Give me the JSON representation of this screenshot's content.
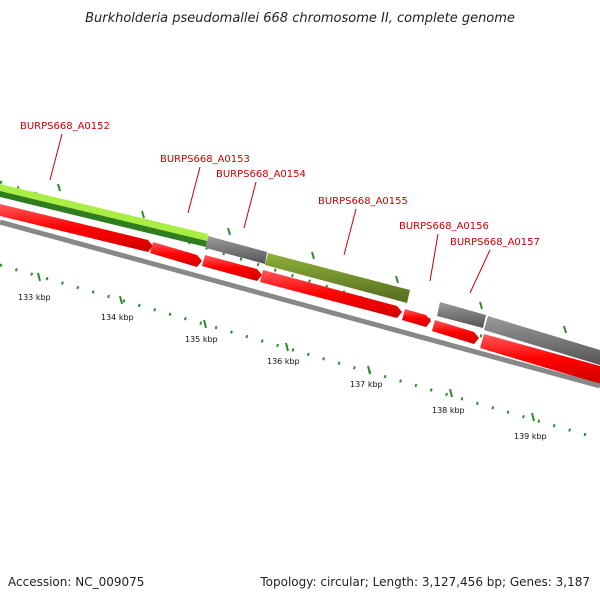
{
  "title": "Burkholderia pseudomallei 668 chromosome II, complete genome",
  "footer": {
    "accession": "Accession: NC_009075",
    "summary": "Topology: circular; Length: 3,127,456 bp; Genes: 3,187"
  },
  "gene_labels": [
    "BURPS668_A0152",
    "BURPS668_A0153",
    "BURPS668_A0154",
    "BURPS668_A0155",
    "BURPS668_A0156",
    "BURPS668_A0157"
  ],
  "ticks": [
    "133 kbp",
    "134 kbp",
    "135 kbp",
    "136 kbp",
    "137 kbp",
    "138 kbp",
    "139 kbp"
  ],
  "colors": {
    "cds": "#ff0000",
    "feature_lightgreen": "#aaee44",
    "feature_darkgreen": "#2e7d1e",
    "feature_olive": "#6b8e23",
    "feature_gray": "#707070",
    "backbone": "#888888",
    "tick_green": "#2e8b2e",
    "label_red": "#cc0000"
  }
}
